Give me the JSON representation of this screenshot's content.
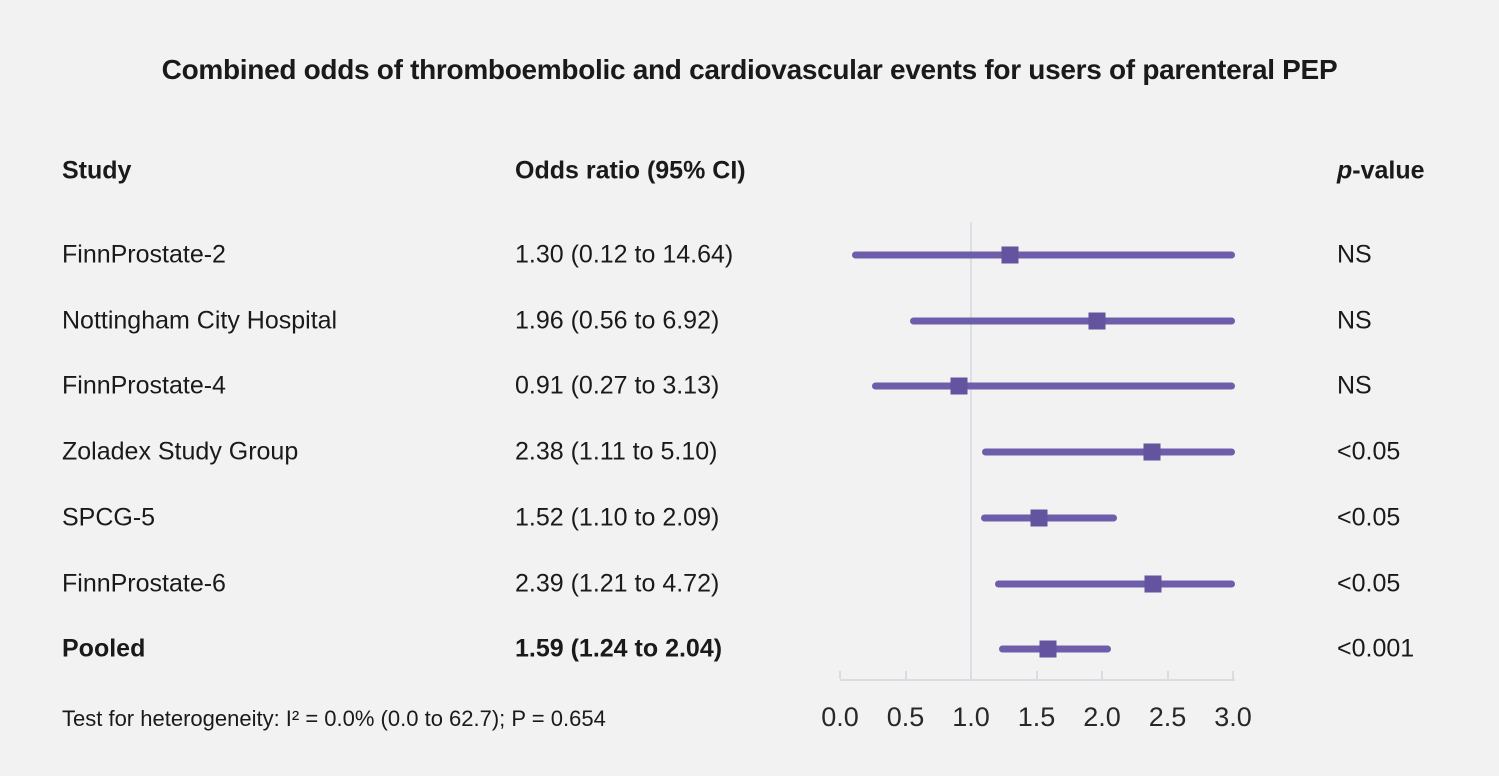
{
  "title": "Combined odds of thromboembolic and cardiovascular events for users of parenteral PEP",
  "columns": {
    "study": "Study",
    "odds_ratio": "Odds ratio (95% CI)",
    "p_italic": "p",
    "p_rest": "-value"
  },
  "footer": "Test for heterogeneity: I² = 0.0% (0.0 to 62.7); P = 0.654",
  "colors": {
    "background": "#f2f2f2",
    "ci_line": "#6e5dab",
    "marker": "#64539f",
    "reference_line": "#dce0e6",
    "axis": "#d9dde2",
    "text": "#1a1a1a"
  },
  "chart_data": {
    "type": "forest",
    "title": "Combined odds of thromboembolic and cardiovascular events for users of parenteral PEP",
    "xlim": [
      0.0,
      3.0
    ],
    "ref_line": 1.0,
    "x_ticks": [
      0.0,
      0.5,
      1.0,
      1.5,
      2.0,
      2.5,
      3.0
    ],
    "x_tick_labels": [
      "0.0",
      "0.5",
      "1.0",
      "1.5",
      "2.0",
      "2.5",
      "3.0"
    ],
    "rows": [
      {
        "study": "FinnProstate-2",
        "or_text": "1.30 (0.12 to 14.64)",
        "or": 1.3,
        "lo": 0.12,
        "hi": 14.64,
        "p": "NS",
        "bold": false
      },
      {
        "study": "Nottingham City Hospital",
        "or_text": "1.96 (0.56 to 6.92)",
        "or": 1.96,
        "lo": 0.56,
        "hi": 6.92,
        "p": "NS",
        "bold": false
      },
      {
        "study": "FinnProstate-4",
        "or_text": "0.91 (0.27 to 3.13)",
        "or": 0.91,
        "lo": 0.27,
        "hi": 3.13,
        "p": "NS",
        "bold": false
      },
      {
        "study": "Zoladex Study Group",
        "or_text": "2.38 (1.11 to 5.10)",
        "or": 2.38,
        "lo": 1.11,
        "hi": 5.1,
        "p": "<0.05",
        "bold": false
      },
      {
        "study": "SPCG-5",
        "or_text": "1.52 (1.10 to 2.09)",
        "or": 1.52,
        "lo": 1.1,
        "hi": 2.09,
        "p": "<0.05",
        "bold": false
      },
      {
        "study": "FinnProstate-6",
        "or_text": "2.39 (1.21 to 4.72)",
        "or": 2.39,
        "lo": 1.21,
        "hi": 4.72,
        "p": "<0.05",
        "bold": false
      },
      {
        "study": "Pooled",
        "or_text": "1.59 (1.24 to 2.04)",
        "or": 1.59,
        "lo": 1.24,
        "hi": 2.04,
        "p": "<0.001",
        "bold": true
      }
    ]
  }
}
